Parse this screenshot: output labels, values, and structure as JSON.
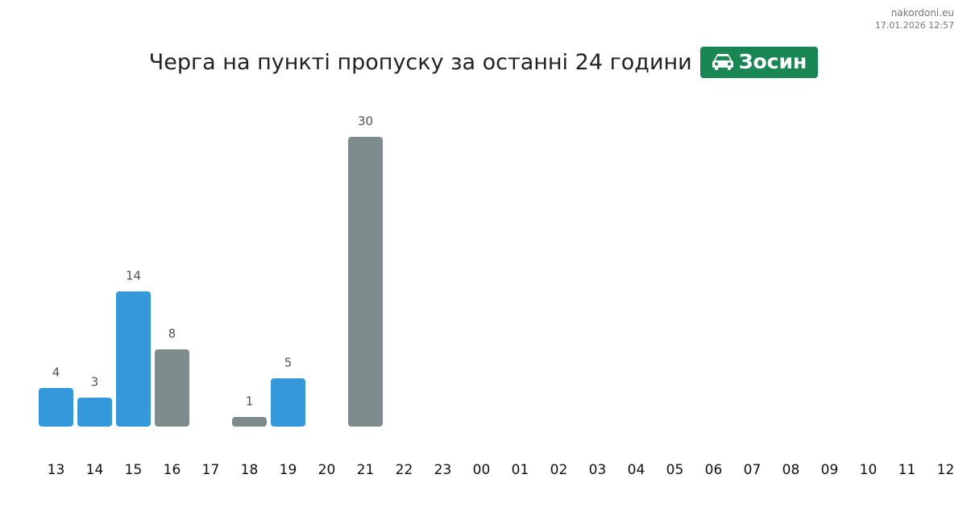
{
  "site": "nakordoni.eu",
  "timestamp": "17.01.2026 12:57",
  "chart_data": {
    "type": "bar",
    "title": "Черга на пункті пропуску за останні 24 години",
    "badge": "Зосин",
    "categories": [
      "13",
      "14",
      "15",
      "16",
      "17",
      "18",
      "19",
      "20",
      "21",
      "22",
      "23",
      "00",
      "01",
      "02",
      "03",
      "04",
      "05",
      "06",
      "07",
      "08",
      "09",
      "10",
      "11",
      "12"
    ],
    "values": [
      4,
      3,
      14,
      8,
      null,
      1,
      5,
      null,
      30,
      null,
      null,
      null,
      null,
      null,
      null,
      null,
      null,
      null,
      null,
      null,
      null,
      null,
      null,
      null
    ],
    "colors": [
      "#3498db",
      "#3498db",
      "#3498db",
      "#7f8c8d",
      null,
      "#7f8c8d",
      "#3498db",
      null,
      "#7f8c8d",
      null,
      null,
      null,
      null,
      null,
      null,
      null,
      null,
      null,
      null,
      null,
      null,
      null,
      null,
      null
    ],
    "ylim": [
      0,
      30
    ]
  }
}
